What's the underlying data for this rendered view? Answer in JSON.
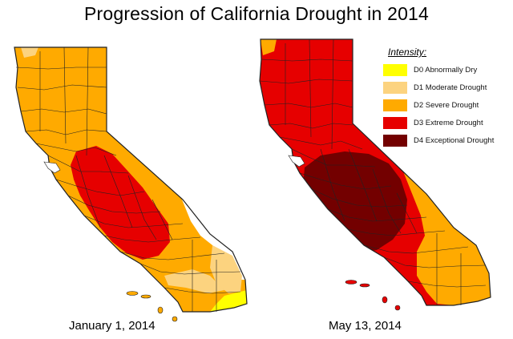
{
  "title": "Progression of California Drought in 2014",
  "legend": {
    "title": "Intensity:",
    "items": [
      {
        "code": "D0",
        "label": "D0 Abnormally Dry",
        "color": "#ffff00"
      },
      {
        "code": "D1",
        "label": "D1 Moderate Drought",
        "color": "#fcd37f"
      },
      {
        "code": "D2",
        "label": "D2 Severe Drought",
        "color": "#ffaa00"
      },
      {
        "code": "D3",
        "label": "D3 Extreme Drought",
        "color": "#e60000"
      },
      {
        "code": "D4",
        "label": "D4 Exceptional Drought",
        "color": "#730000"
      }
    ]
  },
  "maps": [
    {
      "date_label": "January 1, 2014",
      "dominant_intensity": "D2 Severe Drought"
    },
    {
      "date_label": "May 13, 2014",
      "dominant_intensity": "D3 Extreme Drought"
    }
  ],
  "colors": {
    "none": "#ffffff",
    "d0": "#ffff00",
    "d1": "#fcd37f",
    "d2": "#ffaa00",
    "d3": "#e60000",
    "d4": "#730000",
    "border": "#222222"
  }
}
